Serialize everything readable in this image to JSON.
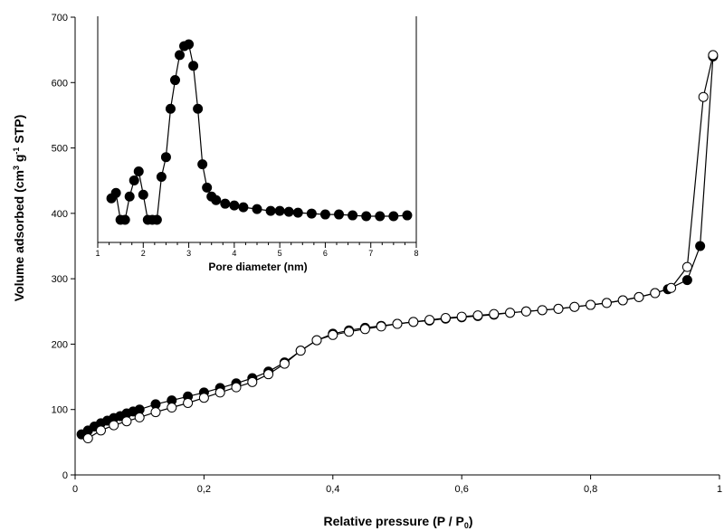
{
  "chart_data": [
    {
      "type": "line",
      "xlabel": "Relative pressure (P / P",
      "xlabel_sub": "0",
      "xlabel_end": ")",
      "ylabel": "Volume adsorbed (cm",
      "ylabel_sup1": "3",
      "ylabel_mid": " g",
      "ylabel_sup2": "-1",
      "ylabel_end": " STP)",
      "xlim": [
        0,
        1
      ],
      "ylim": [
        0,
        700
      ],
      "xticks": [
        0,
        0.2,
        0.4,
        0.6,
        0.8,
        1
      ],
      "xtick_labels": [
        "0",
        "0,2",
        "0,4",
        "0,6",
        "0,8",
        "1"
      ],
      "yticks": [
        0,
        100,
        200,
        300,
        400,
        500,
        600,
        700
      ],
      "ytick_labels": [
        "0",
        "100",
        "200",
        "300",
        "400",
        "500",
        "600",
        "700"
      ],
      "grid": false,
      "series": [
        {
          "marker": "filled-circle",
          "x": [
            0.01,
            0.02,
            0.03,
            0.04,
            0.05,
            0.06,
            0.07,
            0.08,
            0.09,
            0.1,
            0.125,
            0.15,
            0.175,
            0.2,
            0.225,
            0.25,
            0.275,
            0.3,
            0.325,
            0.35,
            0.375,
            0.4,
            0.425,
            0.45,
            0.475,
            0.5,
            0.525,
            0.55,
            0.575,
            0.6,
            0.625,
            0.65,
            0.675,
            0.7,
            0.725,
            0.75,
            0.775,
            0.8,
            0.825,
            0.85,
            0.875,
            0.9,
            0.92,
            0.95,
            0.97,
            0.99
          ],
          "y": [
            62,
            68,
            74,
            79,
            83,
            87,
            90,
            94,
            97,
            100,
            108,
            114,
            120,
            126,
            133,
            140,
            148,
            158,
            172,
            190,
            206,
            216,
            221,
            225,
            228,
            231,
            234,
            236,
            239,
            241,
            243,
            245,
            248,
            250,
            252,
            254,
            257,
            260,
            263,
            267,
            272,
            278,
            284,
            298,
            350,
            640
          ]
        },
        {
          "marker": "open-circle",
          "x": [
            0.02,
            0.04,
            0.06,
            0.08,
            0.1,
            0.125,
            0.15,
            0.175,
            0.2,
            0.225,
            0.25,
            0.275,
            0.3,
            0.325,
            0.35,
            0.375,
            0.4,
            0.425,
            0.45,
            0.475,
            0.5,
            0.525,
            0.55,
            0.575,
            0.6,
            0.625,
            0.65,
            0.675,
            0.7,
            0.725,
            0.75,
            0.775,
            0.8,
            0.825,
            0.85,
            0.875,
            0.9,
            0.925,
            0.95,
            0.975,
            0.99
          ],
          "y": [
            56,
            68,
            76,
            82,
            88,
            96,
            103,
            110,
            118,
            126,
            134,
            142,
            154,
            170,
            190,
            206,
            214,
            219,
            223,
            227,
            231,
            234,
            237,
            240,
            242,
            244,
            246,
            248,
            250,
            252,
            254,
            257,
            260,
            263,
            267,
            272,
            278,
            286,
            318,
            578,
            642
          ]
        }
      ]
    },
    {
      "type": "line",
      "xlabel": "Pore diameter (nm)",
      "ylabel": "",
      "xlim": [
        1,
        8
      ],
      "xticks": [
        1,
        2,
        3,
        4,
        5,
        6,
        7,
        8
      ],
      "xtick_labels": [
        "1",
        "2",
        "3",
        "4",
        "5",
        "6",
        "7",
        "8"
      ],
      "y_tick_labels_shown": false,
      "ylim": [
        0,
        1
      ],
      "grid": false,
      "series": [
        {
          "marker": "filled-circle",
          "x": [
            1.3,
            1.4,
            1.5,
            1.6,
            1.7,
            1.8,
            1.9,
            2.0,
            2.1,
            2.2,
            2.3,
            2.4,
            2.5,
            2.6,
            2.7,
            2.8,
            2.9,
            3.0,
            3.1,
            3.2,
            3.3,
            3.4,
            3.5,
            3.6,
            3.8,
            4.0,
            4.2,
            4.5,
            4.8,
            5.0,
            5.2,
            5.4,
            5.7,
            6.0,
            6.3,
            6.6,
            6.9,
            7.2,
            7.5,
            7.8
          ],
          "y": [
            0.12,
            0.15,
            0.0,
            0.0,
            0.13,
            0.22,
            0.27,
            0.14,
            0.0,
            0.0,
            0.0,
            0.24,
            0.35,
            0.62,
            0.78,
            0.92,
            0.97,
            0.98,
            0.86,
            0.62,
            0.31,
            0.18,
            0.13,
            0.11,
            0.09,
            0.08,
            0.07,
            0.06,
            0.05,
            0.05,
            0.045,
            0.04,
            0.035,
            0.03,
            0.03,
            0.025,
            0.02,
            0.02,
            0.02,
            0.025
          ]
        }
      ]
    }
  ]
}
